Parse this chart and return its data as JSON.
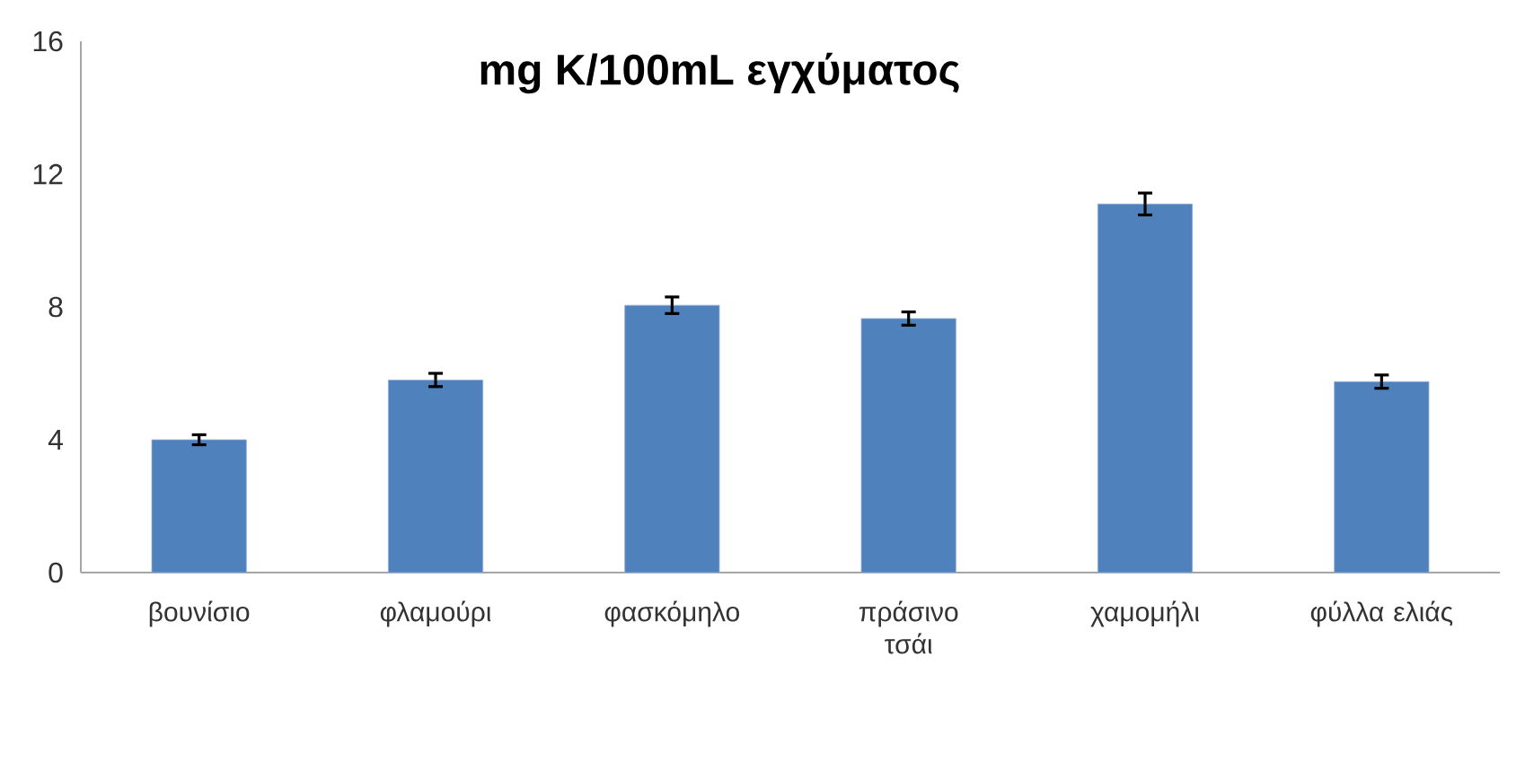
{
  "chart_data": {
    "type": "bar",
    "title": "mg K/100mL εγχύματος",
    "categories": [
      "βουνίσιο",
      "φλαμούρι",
      "φασκόμηλο",
      "πράσινο τσάι",
      "χαμομήλι",
      "φύλλα ελιάς"
    ],
    "values": [
      4.0,
      5.8,
      8.05,
      7.65,
      11.1,
      5.75
    ],
    "errors": [
      0.15,
      0.2,
      0.25,
      0.2,
      0.33,
      0.2
    ],
    "color": "#4f81bd",
    "ylim": [
      0,
      16
    ],
    "yticks": [
      0,
      4,
      8,
      12,
      16
    ],
    "grid": false
  }
}
